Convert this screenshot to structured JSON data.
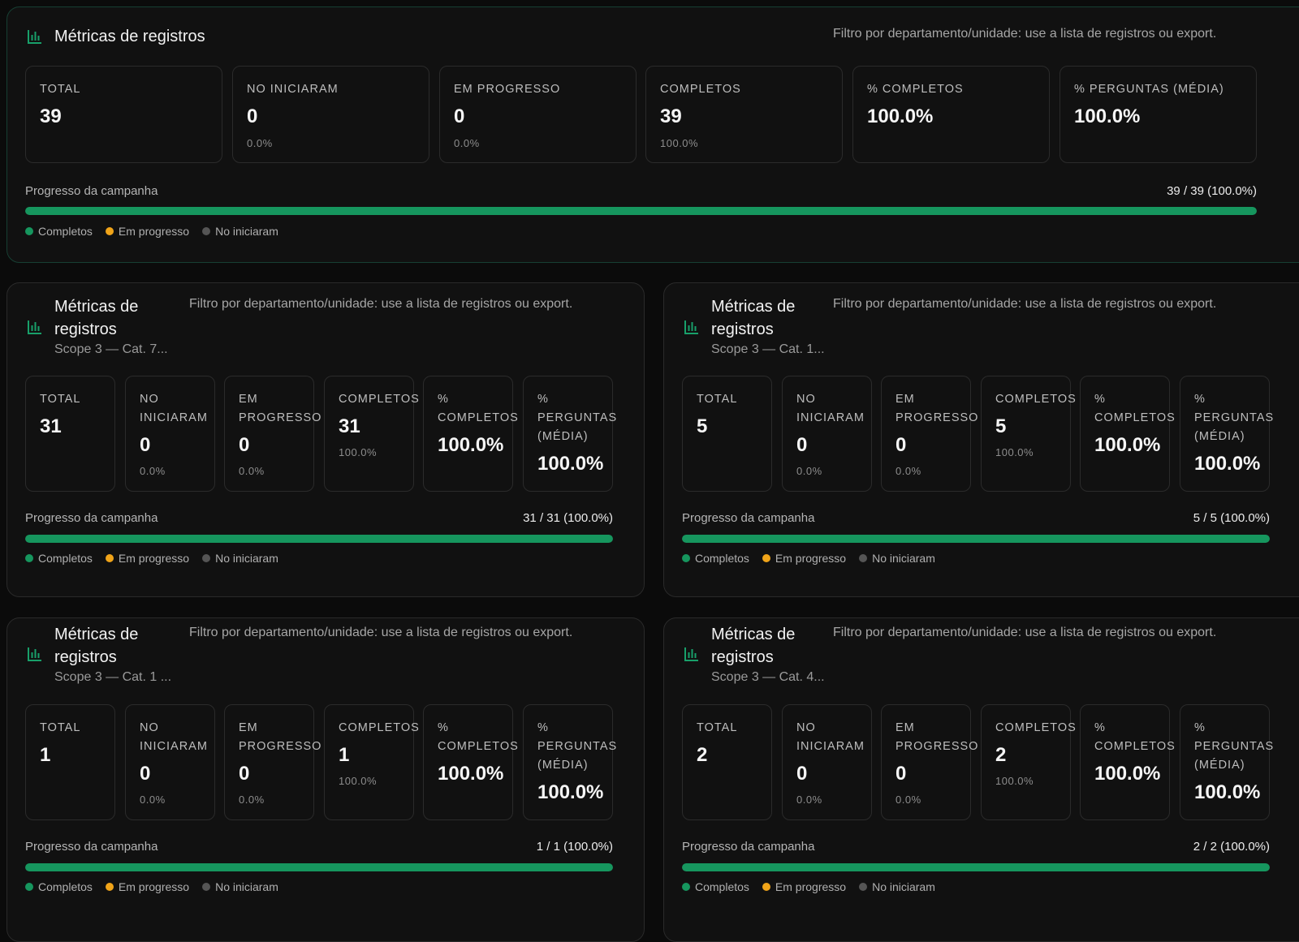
{
  "colors": {
    "completed": "#16965e",
    "in_progress": "#f0a419",
    "not_started": "#555555",
    "icon": "#18a06a"
  },
  "icon": "bar-chart-icon",
  "panels": [
    {
      "title": "Métricas de registros",
      "subtitle": "",
      "filter_note": "Filtro por departamento/unidade: use a lista de registros ou export.",
      "cards": [
        {
          "label": "TOTAL",
          "value": "39",
          "pct": ""
        },
        {
          "label": "NO INICIARAM",
          "value": "0",
          "pct": "0.0%"
        },
        {
          "label": "EM PROGRESSO",
          "value": "0",
          "pct": "0.0%"
        },
        {
          "label": "COMPLETOS",
          "value": "39",
          "pct": "100.0%"
        },
        {
          "label": "% COMPLETOS",
          "value": "100.0%",
          "pct": ""
        },
        {
          "label": "% PERGUNTAS (MÉDIA)",
          "value": "100.0%",
          "pct": ""
        }
      ],
      "progress_label": "Progresso da campanha",
      "progress_value": "39 / 39 (100.0%)",
      "progress_fraction": 1.0,
      "legend": [
        "Completos",
        "Em progresso",
        "No iniciaram"
      ]
    },
    {
      "title": "Métricas de registros",
      "subtitle": "Scope 3 — Cat. 7...",
      "filter_note": "Filtro por departamento/unidade: use a lista de registros ou export.",
      "cards": [
        {
          "label": "TOTAL",
          "value": "31",
          "pct": ""
        },
        {
          "label": "NO INICIARAM",
          "value": "0",
          "pct": "0.0%"
        },
        {
          "label": "EM PROGRESSO",
          "value": "0",
          "pct": "0.0%"
        },
        {
          "label": "COMPLETOS",
          "value": "31",
          "pct": "100.0%"
        },
        {
          "label": "% COMPLETOS",
          "value": "100.0%",
          "pct": ""
        },
        {
          "label": "% PERGUNTAS (MÉDIA)",
          "value": "100.0%",
          "pct": ""
        }
      ],
      "progress_label": "Progresso da campanha",
      "progress_value": "31 / 31 (100.0%)",
      "progress_fraction": 1.0,
      "legend": [
        "Completos",
        "Em progresso",
        "No iniciaram"
      ]
    },
    {
      "title": "Métricas de registros",
      "subtitle": "Scope 3 — Cat. 1...",
      "filter_note": "Filtro por departamento/unidade: use a lista de registros ou export.",
      "cards": [
        {
          "label": "TOTAL",
          "value": "5",
          "pct": ""
        },
        {
          "label": "NO INICIARAM",
          "value": "0",
          "pct": "0.0%"
        },
        {
          "label": "EM PROGRESSO",
          "value": "0",
          "pct": "0.0%"
        },
        {
          "label": "COMPLETOS",
          "value": "5",
          "pct": "100.0%"
        },
        {
          "label": "% COMPLETOS",
          "value": "100.0%",
          "pct": ""
        },
        {
          "label": "% PERGUNTAS (MÉDIA)",
          "value": "100.0%",
          "pct": ""
        }
      ],
      "progress_label": "Progresso da campanha",
      "progress_value": "5 / 5 (100.0%)",
      "progress_fraction": 1.0,
      "legend": [
        "Completos",
        "Em progresso",
        "No iniciaram"
      ]
    },
    {
      "title": "Métricas de registros",
      "subtitle": "Scope 3 — Cat. 1 ...",
      "filter_note": "Filtro por departamento/unidade: use a lista de registros ou export.",
      "cards": [
        {
          "label": "TOTAL",
          "value": "1",
          "pct": ""
        },
        {
          "label": "NO INICIARAM",
          "value": "0",
          "pct": "0.0%"
        },
        {
          "label": "EM PROGRESSO",
          "value": "0",
          "pct": "0.0%"
        },
        {
          "label": "COMPLETOS",
          "value": "1",
          "pct": "100.0%"
        },
        {
          "label": "% COMPLETOS",
          "value": "100.0%",
          "pct": ""
        },
        {
          "label": "% PERGUNTAS (MÉDIA)",
          "value": "100.0%",
          "pct": ""
        }
      ],
      "progress_label": "Progresso da campanha",
      "progress_value": "1 / 1 (100.0%)",
      "progress_fraction": 1.0,
      "legend": [
        "Completos",
        "Em progresso",
        "No iniciaram"
      ]
    },
    {
      "title": "Métricas de registros",
      "subtitle": "Scope 3 — Cat. 4...",
      "filter_note": "Filtro por departamento/unidade: use a lista de registros ou export.",
      "cards": [
        {
          "label": "TOTAL",
          "value": "2",
          "pct": ""
        },
        {
          "label": "NO INICIARAM",
          "value": "0",
          "pct": "0.0%"
        },
        {
          "label": "EM PROGRESSO",
          "value": "0",
          "pct": "0.0%"
        },
        {
          "label": "COMPLETOS",
          "value": "2",
          "pct": "100.0%"
        },
        {
          "label": "% COMPLETOS",
          "value": "100.0%",
          "pct": ""
        },
        {
          "label": "% PERGUNTAS (MÉDIA)",
          "value": "100.0%",
          "pct": ""
        }
      ],
      "progress_label": "Progresso da campanha",
      "progress_value": "2 / 2 (100.0%)",
      "progress_fraction": 1.0,
      "legend": [
        "Completos",
        "Em progresso",
        "No iniciaram"
      ]
    }
  ]
}
